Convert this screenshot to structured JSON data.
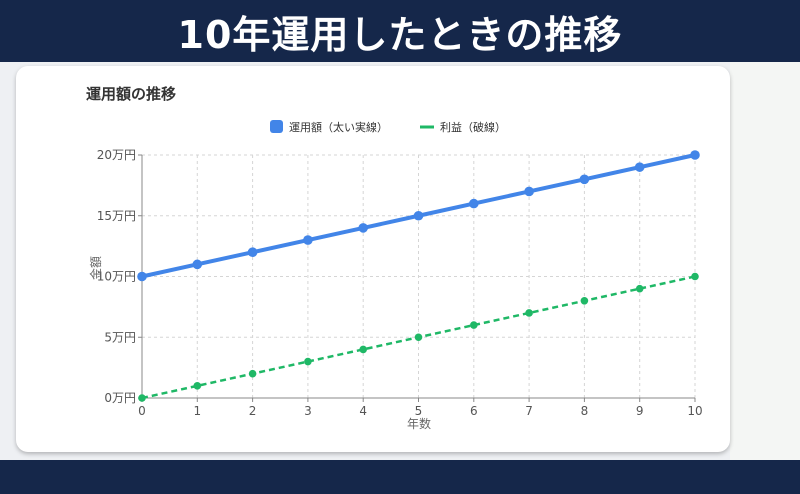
{
  "banner": {
    "title": "10年運用したときの推移"
  },
  "chart_data": {
    "type": "line",
    "title": "運用額の推移",
    "xlabel": "年数",
    "ylabel": "金額",
    "x": [
      0,
      1,
      2,
      3,
      4,
      5,
      6,
      7,
      8,
      9,
      10
    ],
    "ylim": [
      0,
      20
    ],
    "yticks": [
      0,
      5,
      10,
      15,
      20
    ],
    "ytick_labels": [
      "0万円",
      "5万円",
      "10万円",
      "15万円",
      "20万円"
    ],
    "grid": true,
    "legend_position": "top-center",
    "series": [
      {
        "name": "運用額（太い実線）",
        "color": "#4285e8",
        "style": "solid",
        "values": [
          10,
          11,
          12,
          13,
          14,
          15,
          16,
          17,
          18,
          19,
          20
        ]
      },
      {
        "name": "利益（破線）",
        "color": "#1fb866",
        "style": "dashed",
        "values": [
          0,
          1,
          2,
          3,
          4,
          5,
          6,
          7,
          8,
          9,
          10
        ]
      }
    ]
  }
}
